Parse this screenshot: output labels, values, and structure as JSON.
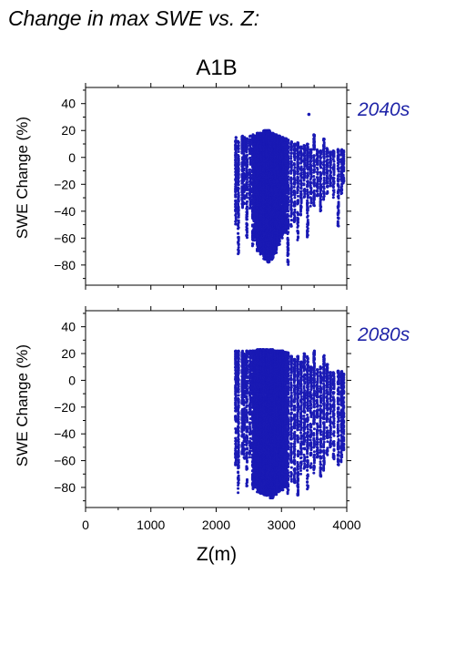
{
  "figure": {
    "title": "Change in max SWE vs. Z:",
    "scenario": "A1B",
    "xlabel": "Z(m)",
    "ylabel": "SWE Change (%)",
    "point_color": "#1a1ab4",
    "period_color": "#1f24a8"
  },
  "chart_data": [
    {
      "type": "scatter",
      "name": "2040s",
      "title": "2040s",
      "xlabel": "",
      "ylabel": "SWE Change (%)",
      "xlim": [
        0,
        4000
      ],
      "ylim": [
        -95,
        52
      ],
      "xticks": [
        0,
        1000,
        2000,
        3000,
        4000
      ],
      "yticks": [
        -80,
        -60,
        -40,
        -20,
        0,
        20,
        40
      ],
      "grid": false,
      "elevation_range": [
        2300,
        3950
      ],
      "change_range": [
        -80,
        20
      ],
      "outlier": {
        "x": 3420,
        "y": 32
      },
      "columns": [
        {
          "x": 2300,
          "min": -50,
          "max": 15
        },
        {
          "x": 2340,
          "min": -72,
          "max": 12
        },
        {
          "x": 2400,
          "min": -38,
          "max": 16
        },
        {
          "x": 2430,
          "min": -35,
          "max": 15
        },
        {
          "x": 2470,
          "min": -62,
          "max": 14
        },
        {
          "x": 2520,
          "min": -38,
          "max": 16
        },
        {
          "x": 2560,
          "min": -68,
          "max": 17
        },
        {
          "x": 2600,
          "min": -62,
          "max": 16
        },
        {
          "x": 2650,
          "min": -70,
          "max": 18
        },
        {
          "x": 2700,
          "min": -72,
          "max": 18
        },
        {
          "x": 2750,
          "min": -76,
          "max": 20
        },
        {
          "x": 2800,
          "min": -78,
          "max": 20
        },
        {
          "x": 2850,
          "min": -76,
          "max": 18
        },
        {
          "x": 2900,
          "min": -72,
          "max": 17
        },
        {
          "x": 2950,
          "min": -66,
          "max": 16
        },
        {
          "x": 3000,
          "min": -60,
          "max": 15
        },
        {
          "x": 3050,
          "min": -56,
          "max": 14
        },
        {
          "x": 3100,
          "min": -80,
          "max": 13
        },
        {
          "x": 3150,
          "min": -52,
          "max": 12
        },
        {
          "x": 3200,
          "min": -48,
          "max": 10
        },
        {
          "x": 3250,
          "min": -62,
          "max": 11
        },
        {
          "x": 3300,
          "min": -44,
          "max": 8
        },
        {
          "x": 3350,
          "min": -30,
          "max": 9
        },
        {
          "x": 3400,
          "min": -60,
          "max": 10
        },
        {
          "x": 3450,
          "min": -38,
          "max": 6
        },
        {
          "x": 3500,
          "min": -36,
          "max": 17
        },
        {
          "x": 3550,
          "min": -30,
          "max": 6
        },
        {
          "x": 3600,
          "min": -40,
          "max": 5
        },
        {
          "x": 3650,
          "min": -32,
          "max": 14
        },
        {
          "x": 3700,
          "min": -28,
          "max": 7
        },
        {
          "x": 3750,
          "min": -26,
          "max": 4
        },
        {
          "x": 3800,
          "min": -30,
          "max": 5
        },
        {
          "x": 3870,
          "min": -52,
          "max": 6
        },
        {
          "x": 3920,
          "min": -28,
          "max": 6
        },
        {
          "x": 3950,
          "min": -22,
          "max": 5
        }
      ]
    },
    {
      "type": "scatter",
      "name": "2080s",
      "title": "2080s",
      "xlabel": "Z(m)",
      "ylabel": "SWE Change (%)",
      "xlim": [
        0,
        4000
      ],
      "ylim": [
        -95,
        52
      ],
      "xticks": [
        0,
        1000,
        2000,
        3000,
        4000
      ],
      "yticks": [
        -80,
        -60,
        -40,
        -20,
        0,
        20,
        40
      ],
      "grid": false,
      "elevation_range": [
        2300,
        3950
      ],
      "change_range": [
        -88,
        23
      ],
      "columns": [
        {
          "x": 2300,
          "min": -65,
          "max": 22
        },
        {
          "x": 2340,
          "min": -84,
          "max": 22
        },
        {
          "x": 2400,
          "min": -55,
          "max": 22
        },
        {
          "x": 2430,
          "min": -60,
          "max": 20
        },
        {
          "x": 2470,
          "min": -80,
          "max": 22
        },
        {
          "x": 2520,
          "min": -58,
          "max": 22
        },
        {
          "x": 2560,
          "min": -82,
          "max": 22
        },
        {
          "x": 2600,
          "min": -80,
          "max": 22
        },
        {
          "x": 2650,
          "min": -84,
          "max": 23
        },
        {
          "x": 2700,
          "min": -85,
          "max": 23
        },
        {
          "x": 2750,
          "min": -86,
          "max": 23
        },
        {
          "x": 2800,
          "min": -86,
          "max": 23
        },
        {
          "x": 2850,
          "min": -88,
          "max": 23
        },
        {
          "x": 2900,
          "min": -86,
          "max": 22
        },
        {
          "x": 2950,
          "min": -84,
          "max": 22
        },
        {
          "x": 3000,
          "min": -82,
          "max": 22
        },
        {
          "x": 3050,
          "min": -80,
          "max": 21
        },
        {
          "x": 3100,
          "min": -85,
          "max": 21
        },
        {
          "x": 3150,
          "min": -76,
          "max": 18
        },
        {
          "x": 3200,
          "min": -78,
          "max": 16
        },
        {
          "x": 3250,
          "min": -88,
          "max": 18
        },
        {
          "x": 3300,
          "min": -70,
          "max": 14
        },
        {
          "x": 3350,
          "min": -66,
          "max": 20
        },
        {
          "x": 3400,
          "min": -82,
          "max": 18
        },
        {
          "x": 3450,
          "min": -66,
          "max": 10
        },
        {
          "x": 3500,
          "min": -70,
          "max": 22
        },
        {
          "x": 3550,
          "min": -60,
          "max": 8
        },
        {
          "x": 3600,
          "min": -72,
          "max": 10
        },
        {
          "x": 3650,
          "min": -70,
          "max": 19
        },
        {
          "x": 3700,
          "min": -58,
          "max": 12
        },
        {
          "x": 3750,
          "min": -50,
          "max": 6
        },
        {
          "x": 3800,
          "min": -60,
          "max": 6
        },
        {
          "x": 3870,
          "min": -66,
          "max": 7
        },
        {
          "x": 3920,
          "min": -62,
          "max": 7
        },
        {
          "x": 3950,
          "min": -55,
          "max": 5
        }
      ]
    }
  ]
}
